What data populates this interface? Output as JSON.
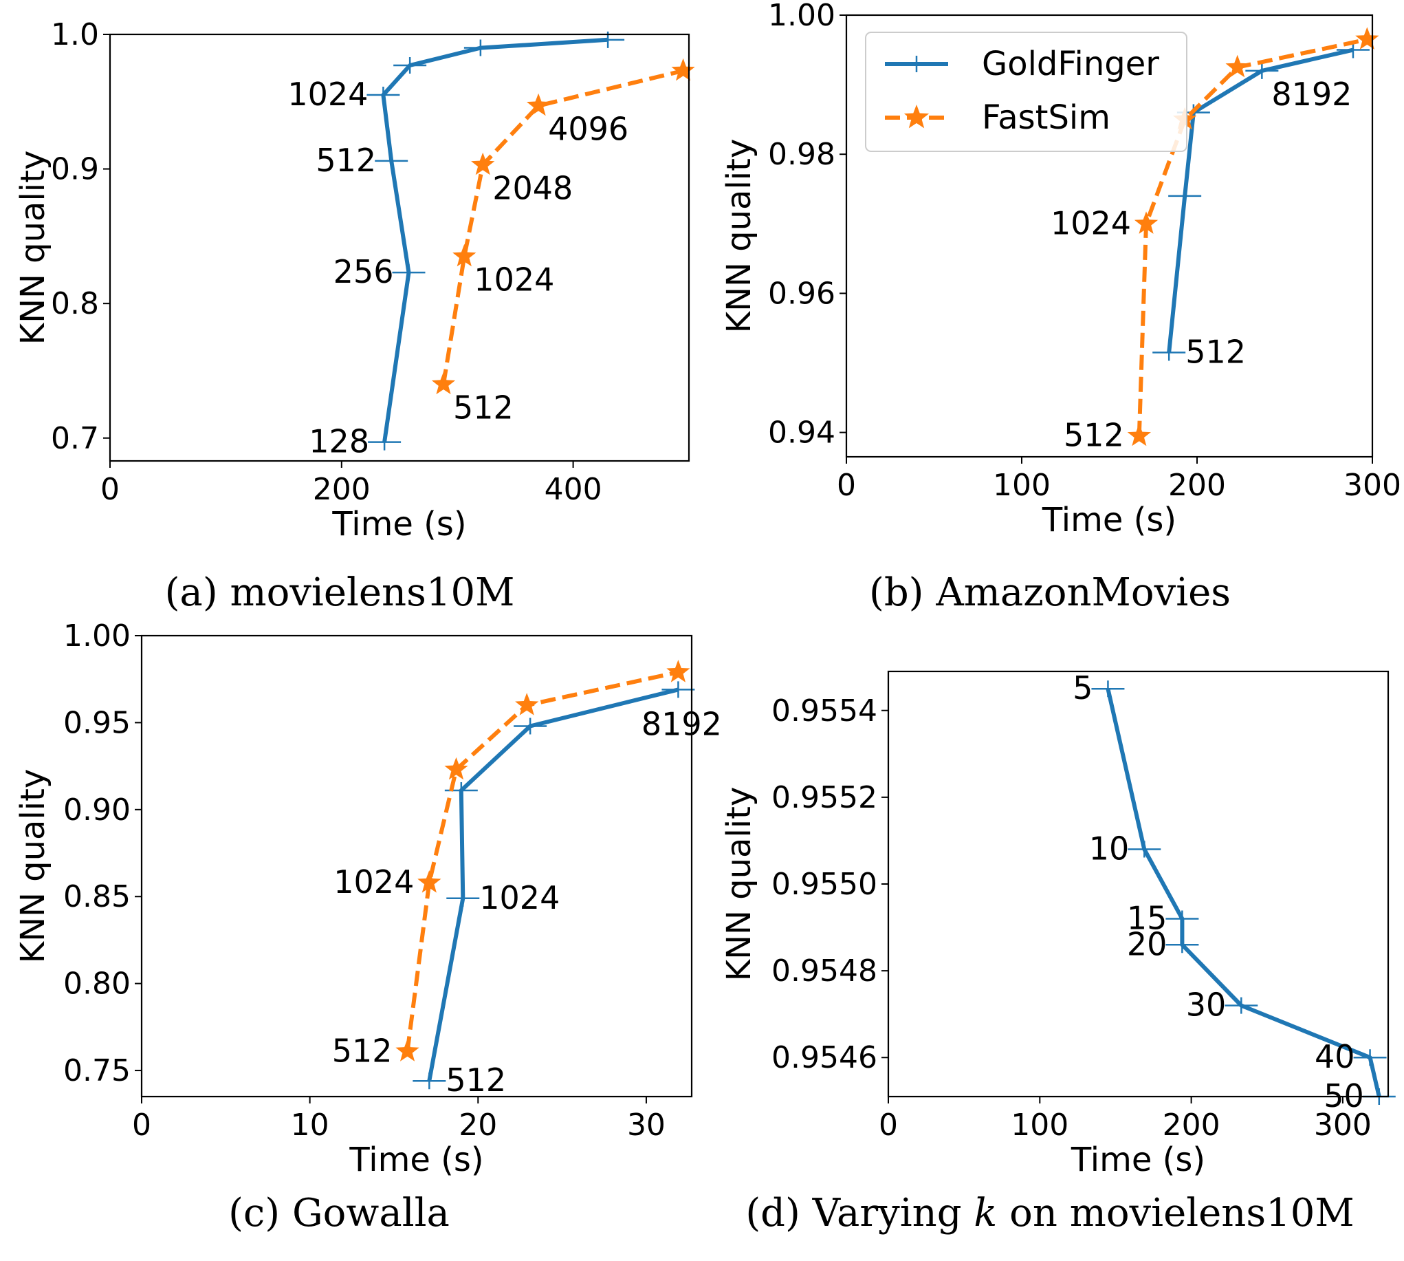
{
  "colors": {
    "goldfinger": "#1f77b4",
    "fastsim": "#ff7f0e"
  },
  "legend": {
    "goldfinger": "GoldFinger",
    "fastsim": "FastSim"
  },
  "chart_data": [
    {
      "type": "line",
      "caption": "(a) movielens10M",
      "xlabel": "Time (s)",
      "ylabel": "KNN quality",
      "xlim": [
        0,
        500
      ],
      "ylim": [
        0.683,
        1.0
      ],
      "xticks": [
        0,
        200,
        400
      ],
      "xtick_labels": [
        "0",
        "200",
        "400"
      ],
      "yticks": [
        0.7,
        0.8,
        0.9,
        1.0
      ],
      "ytick_labels": [
        "0.7",
        "0.8",
        "0.9",
        "1.0"
      ],
      "legend": false,
      "series": [
        {
          "name": "GoldFinger",
          "points": [
            [
              237,
              0.697
            ],
            [
              258,
              0.823
            ],
            [
              243,
              0.906
            ],
            [
              236,
              0.955
            ],
            [
              259,
              0.977
            ],
            [
              320,
              0.99
            ],
            [
              430,
              0.996
            ]
          ],
          "labels": [
            {
              "text": "128",
              "i": 0,
              "pos": "left"
            },
            {
              "text": "256",
              "i": 1,
              "pos": "left"
            },
            {
              "text": "512",
              "i": 2,
              "pos": "left"
            },
            {
              "text": "1024",
              "i": 3,
              "pos": "left"
            }
          ]
        },
        {
          "name": "FastSim",
          "points": [
            [
              288,
              0.74
            ],
            [
              306,
              0.835
            ],
            [
              322,
              0.903
            ],
            [
              370,
              0.947
            ],
            [
              495,
              0.973
            ]
          ],
          "labels": [
            {
              "text": "512",
              "i": 0,
              "pos": "right-below"
            },
            {
              "text": "1024",
              "i": 1,
              "pos": "right-below"
            },
            {
              "text": "2048",
              "i": 2,
              "pos": "right-below"
            },
            {
              "text": "4096",
              "i": 3,
              "pos": "right-below"
            }
          ]
        }
      ]
    },
    {
      "type": "line",
      "caption": "(b) AmazonMovies",
      "xlabel": "Time (s)",
      "ylabel": "KNN quality",
      "xlim": [
        0,
        300
      ],
      "ylim": [
        0.9365,
        1.0
      ],
      "xticks": [
        0,
        100,
        200,
        300
      ],
      "xtick_labels": [
        "0",
        "100",
        "200",
        "300"
      ],
      "yticks": [
        0.94,
        0.96,
        0.98,
        1.0
      ],
      "ytick_labels": [
        "0.94",
        "0.96",
        "0.98",
        "1.00"
      ],
      "legend": true,
      "series": [
        {
          "name": "GoldFinger",
          "points": [
            [
              184,
              0.9515
            ],
            [
              193,
              0.974
            ],
            [
              198,
              0.986
            ],
            [
              237,
              0.992
            ],
            [
              289,
              0.995
            ]
          ],
          "labels": [
            {
              "text": "512",
              "i": 0,
              "pos": "right"
            },
            {
              "text": "8192",
              "i": 3,
              "pos": "right-below"
            }
          ]
        },
        {
          "name": "FastSim",
          "points": [
            [
              167,
              0.9395
            ],
            [
              171,
              0.97
            ],
            [
              193,
              0.985
            ],
            [
              223,
              0.9925
            ],
            [
              297,
              0.9965
            ]
          ],
          "labels": [
            {
              "text": "512",
              "i": 0,
              "pos": "left"
            },
            {
              "text": "1024",
              "i": 1,
              "pos": "left"
            }
          ]
        }
      ]
    },
    {
      "type": "line",
      "caption": "(c) Gowalla",
      "xlabel": "Time (s)",
      "ylabel": "KNN quality",
      "xlim": [
        0,
        32.7
      ],
      "ylim": [
        0.735,
        1.0
      ],
      "xticks": [
        0,
        10,
        20,
        30
      ],
      "xtick_labels": [
        "0",
        "10",
        "20",
        "30"
      ],
      "yticks": [
        0.75,
        0.8,
        0.85,
        0.9,
        0.95,
        1.0
      ],
      "ytick_labels": [
        "0.75",
        "0.80",
        "0.85",
        "0.90",
        "0.95",
        "1.00"
      ],
      "legend": false,
      "series": [
        {
          "name": "GoldFinger",
          "points": [
            [
              17.1,
              0.744
            ],
            [
              19.1,
              0.849
            ],
            [
              19.0,
              0.911
            ],
            [
              23.1,
              0.948
            ],
            [
              31.9,
              0.969
            ]
          ],
          "labels": [
            {
              "text": "512",
              "i": 0,
              "pos": "right"
            },
            {
              "text": "1024",
              "i": 1,
              "pos": "right"
            },
            {
              "text": "8192",
              "i": 4,
              "pos": "below"
            }
          ]
        },
        {
          "name": "FastSim",
          "points": [
            [
              15.8,
              0.761
            ],
            [
              17.1,
              0.858
            ],
            [
              18.7,
              0.923
            ],
            [
              22.9,
              0.96
            ],
            [
              31.9,
              0.979
            ]
          ],
          "labels": [
            {
              "text": "512",
              "i": 0,
              "pos": "left"
            },
            {
              "text": "1024",
              "i": 1,
              "pos": "left"
            }
          ]
        }
      ]
    },
    {
      "type": "line",
      "caption": "(d) Varying k on movielens10M",
      "caption_parts": [
        "(d) Varying ",
        "k",
        " on movielens10M"
      ],
      "xlabel": "Time (s)",
      "ylabel": "KNN quality",
      "xlim": [
        0,
        330
      ],
      "ylim": [
        0.95451,
        0.95549
      ],
      "xticks": [
        0,
        100,
        200,
        300
      ],
      "xtick_labels": [
        "0",
        "100",
        "200",
        "300"
      ],
      "yticks": [
        0.9546,
        0.9548,
        0.955,
        0.9552,
        0.9554
      ],
      "ytick_labels": [
        "0.9546",
        "0.9548",
        "0.9550",
        "0.9552",
        "0.9554"
      ],
      "legend": false,
      "series": [
        {
          "name": "GoldFinger",
          "points": [
            [
              145,
              0.95545
            ],
            [
              169,
              0.95508
            ],
            [
              194,
              0.95492
            ],
            [
              194,
              0.95486
            ],
            [
              233,
              0.95472
            ],
            [
              318,
              0.9546
            ],
            [
              324,
              0.95451
            ]
          ],
          "labels": [
            {
              "text": "5",
              "i": 0,
              "pos": "left"
            },
            {
              "text": "10",
              "i": 1,
              "pos": "left"
            },
            {
              "text": "15",
              "i": 2,
              "pos": "left"
            },
            {
              "text": "20",
              "i": 3,
              "pos": "left"
            },
            {
              "text": "30",
              "i": 4,
              "pos": "left"
            },
            {
              "text": "40",
              "i": 5,
              "pos": "left"
            },
            {
              "text": "50",
              "i": 6,
              "pos": "left"
            }
          ]
        }
      ]
    }
  ]
}
